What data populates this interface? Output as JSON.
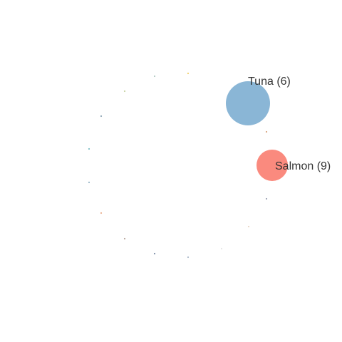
{
  "chart_data": {
    "type": "scatter",
    "title": "",
    "xlabel": "",
    "ylabel": "",
    "grid": false,
    "legend": "none",
    "points": [
      {
        "label": "Tuna (6)",
        "category": "Tuna",
        "value": 6,
        "color": "#8ab6d6",
        "size": "large"
      },
      {
        "label": "Salmon (9)",
        "category": "Salmon",
        "value": 9,
        "color": "#fa8a7e",
        "size": "medium"
      },
      {
        "label": "",
        "color": "#d9a27a",
        "size": "tiny"
      },
      {
        "label": "",
        "color": "#9aa0b2",
        "size": "tiny"
      },
      {
        "label": "",
        "color": "#e8d5c4",
        "size": "tiny"
      },
      {
        "label": "",
        "color": "#e6e6e6",
        "size": "tiny"
      },
      {
        "label": "",
        "color": "#aab8c8",
        "size": "tiny"
      },
      {
        "label": "",
        "color": "#7f8fa8",
        "size": "tiny"
      },
      {
        "label": "",
        "color": "#e9b08f",
        "size": "tiny"
      },
      {
        "label": "",
        "color": "#b6a39a",
        "size": "tiny"
      },
      {
        "label": "",
        "color": "#9bb7c8",
        "size": "tiny"
      },
      {
        "label": "",
        "color": "#7dbfc5",
        "size": "tiny"
      },
      {
        "label": "",
        "color": "#8fa6b6",
        "size": "tiny"
      },
      {
        "label": "",
        "color": "#c7d3a2",
        "size": "tiny"
      },
      {
        "label": "",
        "color": "#b1c9c2",
        "size": "tiny"
      },
      {
        "label": "",
        "color": "#f2d06b",
        "size": "tiny"
      }
    ]
  }
}
